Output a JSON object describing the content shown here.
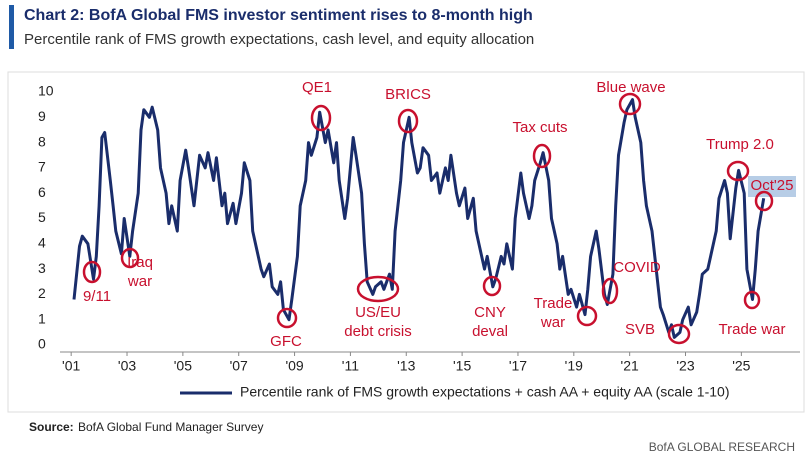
{
  "chart_data": {
    "type": "line",
    "title": "Chart 2: BofA Global FMS investor sentiment rises to 8-month high",
    "subtitle": "Percentile rank of FMS growth expectations, cash level, and equity allocation",
    "source_label": "Source:",
    "source": "BofA Global Fund Manager Survey",
    "footer": "BofA GLOBAL RESEARCH",
    "x": [
      2001.1,
      2001.3,
      2001.4,
      2001.6,
      2001.7,
      2001.8,
      2001.9,
      2002.0,
      2002.1,
      2002.2,
      2002.4,
      2002.5,
      2002.6,
      2002.8,
      2002.9,
      2003.1,
      2003.2,
      2003.4,
      2003.5,
      2003.6,
      2003.8,
      2003.9,
      2004.1,
      2004.2,
      2004.4,
      2004.5,
      2004.6,
      2004.8,
      2004.9,
      2005.1,
      2005.2,
      2005.4,
      2005.5,
      2005.6,
      2005.8,
      2005.9,
      2006.1,
      2006.2,
      2006.4,
      2006.5,
      2006.6,
      2006.8,
      2006.9,
      2007.1,
      2007.2,
      2007.4,
      2007.5,
      2007.6,
      2007.8,
      2007.9,
      2008.1,
      2008.2,
      2008.4,
      2008.5,
      2008.6,
      2008.8,
      2008.9,
      2009.1,
      2009.2,
      2009.4,
      2009.5,
      2009.6,
      2009.8,
      2009.9,
      2010.1,
      2010.2,
      2010.4,
      2010.5,
      2010.6,
      2010.8,
      2010.9,
      2011.1,
      2011.2,
      2011.4,
      2011.5,
      2011.6,
      2011.8,
      2011.9,
      2012.1,
      2012.2,
      2012.4,
      2012.5,
      2012.6,
      2012.8,
      2012.9,
      2013.1,
      2013.2,
      2013.4,
      2013.5,
      2013.6,
      2013.8,
      2013.9,
      2014.1,
      2014.2,
      2014.4,
      2014.5,
      2014.6,
      2014.8,
      2014.9,
      2015.1,
      2015.2,
      2015.4,
      2015.5,
      2015.6,
      2015.8,
      2015.9,
      2016.1,
      2016.2,
      2016.4,
      2016.5,
      2016.6,
      2016.8,
      2016.9,
      2017.1,
      2017.2,
      2017.4,
      2017.5,
      2017.6,
      2017.8,
      2017.9,
      2018.1,
      2018.2,
      2018.4,
      2018.5,
      2018.6,
      2018.8,
      2018.9,
      2019.1,
      2019.2,
      2019.4,
      2019.5,
      2019.6,
      2019.8,
      2019.9,
      2020.1,
      2020.2,
      2020.4,
      2020.5,
      2020.6,
      2020.8,
      2020.9,
      2021.1,
      2021.2,
      2021.4,
      2021.5,
      2021.6,
      2021.8,
      2021.9,
      2022.1,
      2022.2,
      2022.4,
      2022.5,
      2022.6,
      2022.8,
      2022.9,
      2023.1,
      2023.2,
      2023.4,
      2023.5,
      2023.6,
      2023.8,
      2023.9,
      2024.1,
      2024.2,
      2024.4,
      2024.5,
      2024.6,
      2024.8,
      2024.9,
      2025.1,
      2025.2,
      2025.4,
      2025.5,
      2025.6,
      2025.8
    ],
    "series": [
      {
        "name": "Percentile rank of FMS growth expectations + cash AA + equity AA (scale 1-10)",
        "color": "#1a2d6b",
        "values": [
          1.8,
          3.9,
          4.3,
          4.0,
          3.3,
          2.6,
          3.5,
          5.5,
          8.2,
          8.4,
          6.5,
          5.5,
          4.5,
          3.6,
          5.0,
          3.5,
          4.5,
          6.0,
          8.5,
          9.3,
          9.0,
          9.4,
          8.5,
          7.0,
          6.0,
          4.8,
          5.5,
          4.5,
          6.5,
          7.7,
          7.0,
          5.5,
          6.5,
          7.5,
          7.0,
          7.6,
          6.5,
          7.4,
          5.5,
          6.0,
          4.8,
          5.6,
          4.8,
          6.0,
          7.2,
          6.5,
          4.5,
          4.0,
          3.0,
          2.7,
          3.2,
          2.3,
          2.0,
          2.5,
          1.4,
          1.0,
          1.8,
          3.5,
          5.5,
          6.5,
          8.0,
          7.5,
          8.2,
          9.2,
          8.0,
          8.5,
          7.2,
          8.0,
          6.5,
          5.0,
          5.8,
          8.2,
          7.5,
          6.0,
          4.0,
          2.5,
          2.0,
          2.3,
          2.5,
          2.2,
          2.8,
          2.2,
          4.5,
          6.5,
          8.0,
          9.0,
          8.0,
          6.8,
          7.0,
          7.8,
          7.5,
          6.5,
          6.8,
          6.0,
          7.0,
          6.5,
          7.5,
          6.0,
          5.5,
          6.2,
          5.0,
          5.8,
          4.5,
          4.0,
          3.0,
          3.5,
          2.3,
          2.6,
          3.5,
          3.2,
          4.0,
          3.0,
          5.0,
          6.8,
          6.0,
          5.0,
          5.5,
          6.5,
          7.2,
          7.6,
          6.5,
          5.0,
          4.0,
          3.0,
          3.5,
          2.0,
          2.2,
          1.5,
          2.0,
          1.2,
          2.2,
          3.5,
          4.5,
          3.8,
          2.0,
          1.6,
          2.8,
          5.5,
          7.5,
          8.8,
          9.3,
          9.7,
          9.0,
          8.0,
          6.5,
          5.5,
          4.5,
          3.5,
          1.5,
          1.2,
          0.5,
          0.8,
          0.3,
          0.5,
          1.0,
          1.5,
          0.8,
          1.3,
          2.0,
          2.8,
          3.0,
          3.5,
          4.5,
          5.8,
          6.5,
          6.0,
          4.2,
          6.2,
          6.9,
          6.0,
          3.0,
          1.8,
          3.0,
          4.5,
          5.8
        ]
      }
    ],
    "xlim": [
      2000.6,
      2027.1
    ],
    "xticks": [
      {
        "value": 2001,
        "label": "'01"
      },
      {
        "value": 2003,
        "label": "'03"
      },
      {
        "value": 2005,
        "label": "'05"
      },
      {
        "value": 2007,
        "label": "'07"
      },
      {
        "value": 2009,
        "label": "'09"
      },
      {
        "value": 2011,
        "label": "'11"
      },
      {
        "value": 2013,
        "label": "'13"
      },
      {
        "value": 2015,
        "label": "'15"
      },
      {
        "value": 2017,
        "label": "'17"
      },
      {
        "value": 2019,
        "label": "'19"
      },
      {
        "value": 2021,
        "label": "'21"
      },
      {
        "value": 2023,
        "label": "'23"
      },
      {
        "value": 2025,
        "label": "'25"
      }
    ],
    "ylim": [
      0,
      10
    ],
    "yticks": [
      0,
      1,
      2,
      3,
      4,
      5,
      6,
      7,
      8,
      9,
      10
    ],
    "grid": false,
    "annotation_color": "#c8102e",
    "annotations": [
      [
        "9/11"
      ],
      [
        "Iraq",
        "war"
      ],
      [
        "QE1"
      ],
      [
        "GFC"
      ],
      [
        "US/EU",
        "debt crisis"
      ],
      [
        "BRICS"
      ],
      [
        "CNY",
        "deval"
      ],
      [
        "Tax cuts"
      ],
      [
        "Trade",
        "war"
      ],
      [
        "COVID"
      ],
      [
        "Blue wave"
      ],
      [
        "SVB"
      ],
      [
        "Trump 2.0"
      ],
      [
        "Oct'25"
      ],
      [
        "Trade war"
      ]
    ]
  }
}
